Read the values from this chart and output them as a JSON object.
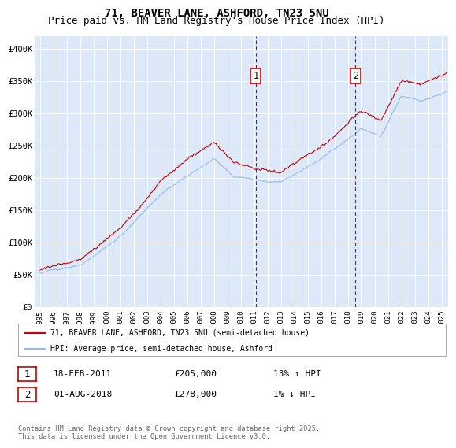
{
  "title": "71, BEAVER LANE, ASHFORD, TN23 5NU",
  "subtitle": "Price paid vs. HM Land Registry's House Price Index (HPI)",
  "ylim": [
    0,
    420000
  ],
  "yticks": [
    0,
    50000,
    100000,
    150000,
    200000,
    250000,
    300000,
    350000,
    400000
  ],
  "ytick_labels": [
    "£0",
    "£50K",
    "£100K",
    "£150K",
    "£200K",
    "£250K",
    "£300K",
    "£350K",
    "£400K"
  ],
  "background_color": "#ffffff",
  "plot_bg_color": "#dde8f8",
  "grid_color": "#ffffff",
  "red_line_color": "#cc0000",
  "blue_line_color": "#99bbee",
  "marker1_x": 2011.12,
  "marker2_x": 2018.58,
  "marker1_label": "18-FEB-2011",
  "marker2_label": "01-AUG-2018",
  "marker1_price": "£205,000",
  "marker2_price": "£278,000",
  "marker1_hpi": "13% ↑ HPI",
  "marker2_hpi": "1% ↓ HPI",
  "legend_red": "71, BEAVER LANE, ASHFORD, TN23 5NU (semi-detached house)",
  "legend_blue": "HPI: Average price, semi-detached house, Ashford",
  "footnote": "Contains HM Land Registry data © Crown copyright and database right 2025.\nThis data is licensed under the Open Government Licence v3.0.",
  "title_fontsize": 10,
  "subtitle_fontsize": 9
}
